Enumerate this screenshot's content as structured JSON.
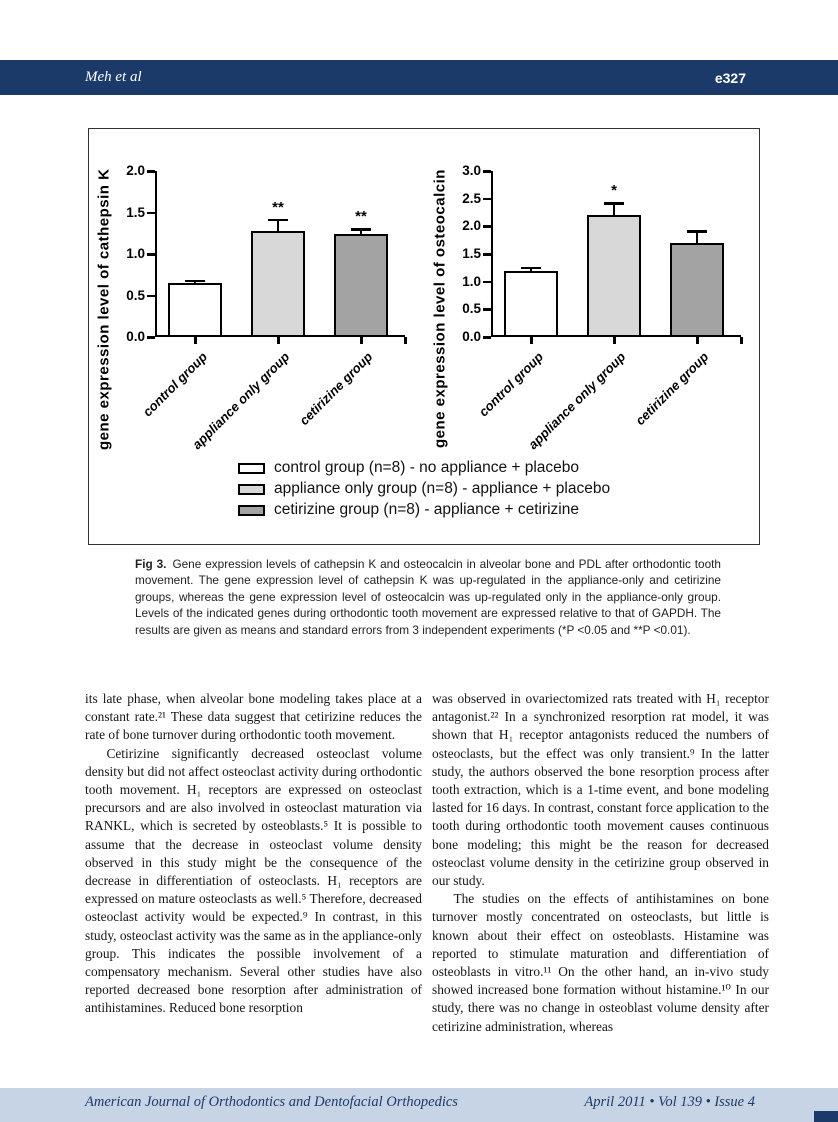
{
  "header": {
    "authors": "Meh et al",
    "page_number": "e327"
  },
  "chart_data": [
    {
      "type": "bar",
      "ylabel": "gene expression level of cathepsin K",
      "categories": [
        "control group",
        "appliance only group",
        "cetirizine group"
      ],
      "values": [
        0.65,
        1.28,
        1.24
      ],
      "errors": [
        0.03,
        0.13,
        0.06
      ],
      "significance": [
        "",
        "**",
        "**"
      ],
      "ylim": [
        0,
        2.0
      ],
      "yticks": [
        0.0,
        0.5,
        1.0,
        1.5,
        2.0
      ],
      "bar_colors": [
        "#ffffff",
        "#d8d8d8",
        "#a3a3a3"
      ],
      "grid": false,
      "legend_position": "shared-bottom"
    },
    {
      "type": "bar",
      "ylabel": "gene expression level of osteocalcin",
      "categories": [
        "control group",
        "appliance only group",
        "cetirizine group"
      ],
      "values": [
        1.2,
        2.21,
        1.69
      ],
      "errors": [
        0.05,
        0.21,
        0.22
      ],
      "significance": [
        "",
        "*",
        ""
      ],
      "ylim": [
        0,
        3.0
      ],
      "yticks": [
        0.0,
        0.5,
        1.0,
        1.5,
        2.0,
        2.5,
        3.0
      ],
      "bar_colors": [
        "#ffffff",
        "#d8d8d8",
        "#a3a3a3"
      ],
      "grid": false,
      "legend_position": "shared-bottom"
    }
  ],
  "figure": {
    "legend": [
      {
        "label": "control group (n=8) - no appliance + placebo",
        "color": "#ffffff"
      },
      {
        "label": "appliance only group (n=8) - appliance + placebo",
        "color": "#d8d8d8"
      },
      {
        "label": "cetirizine group (n=8) - appliance + cetirizine",
        "color": "#a3a3a3"
      }
    ]
  },
  "caption": {
    "label": "Fig 3.",
    "text": "Gene expression levels of cathepsin K and osteocalcin in alveolar bone and PDL after orthodontic tooth movement. The gene expression level of cathepsin K was up-regulated in the appliance-only and cetirizine groups, whereas the gene expression level of osteocalcin was up-regulated only in the appliance-only group. Levels of the indicated genes during orthodontic tooth movement are expressed relative to that of GAPDH. The results are given as means and standard errors from 3 independent experiments (*P <0.05 and **P <0.01)."
  },
  "body": {
    "left": [
      "its late phase, when alveolar bone modeling takes place at a constant rate.²¹ These data suggest that cetirizine reduces the rate of bone turnover during orthodontic tooth movement.",
      "Cetirizine significantly decreased osteoclast volume density but did not affect osteoclast activity during orthodontic tooth movement. H₁ receptors are expressed on osteoclast precursors and are also involved in osteoclast maturation via RANKL, which is secreted by osteoblasts.⁵ It is possible to assume that the decrease in osteoclast volume density observed in this study might be the consequence of the decrease in differentiation of osteoclasts. H₁ receptors are expressed on mature osteoclasts as well.⁵ Therefore, decreased osteoclast activity would be expected.⁹ In contrast, in this study, osteoclast activity was the same as in the appliance-only group. This indicates the possible involvement of a compensatory mechanism. Several other studies have also reported decreased bone resorption after administration of antihistamines. Reduced bone resorption"
    ],
    "right": [
      "was observed in ovariectomized rats treated with H₁ receptor antagonist.²² In a synchronized resorption rat model, it was shown that H₁ receptor antagonists reduced the numbers of osteoclasts, but the effect was only transient.⁹ In the latter study, the authors observed the bone resorption process after tooth extraction, which is a 1-time event, and bone modeling lasted for 16 days. In contrast, constant force application to the tooth during orthodontic tooth movement causes continuous bone modeling; this might be the reason for decreased osteoclast volume density in the cetirizine group observed in our study.",
      "The studies on the effects of antihistamines on bone turnover mostly concentrated on osteoclasts, but little is known about their effect on osteoblasts. Histamine was reported to stimulate maturation and differentiation of osteoblasts in vitro.¹¹ On the other hand, an in-vivo study showed increased bone formation without histamine.¹⁰ In our study, there was no change in osteoblast volume density after cetirizine administration, whereas"
    ]
  },
  "footer": {
    "journal": "American Journal of Orthodontics and Dentofacial Orthopedics",
    "issue": "April 2011 • Vol 139 • Issue 4"
  },
  "colors": {
    "navy": "#1b3a6a",
    "footer_blue": "#c7d4e6",
    "bar_border": "#000000"
  }
}
